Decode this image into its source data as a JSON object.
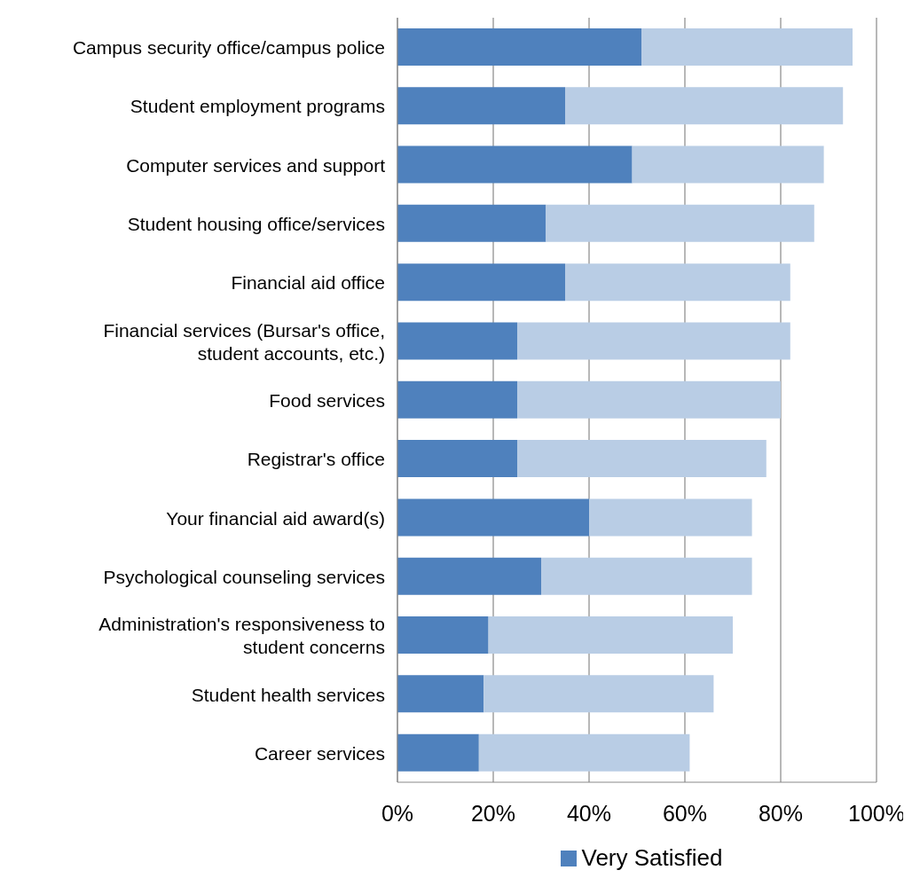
{
  "chart_data": {
    "type": "bar",
    "orientation": "horizontal",
    "stacked": true,
    "categories": [
      "Campus security office/campus police",
      "Student employment programs",
      "Computer services and support",
      "Student housing office/services",
      "Financial aid office",
      "Financial services (Bursar's office, student accounts, etc.)",
      "Food services",
      "Registrar's office",
      "Your financial aid award(s)",
      "Psychological counseling services",
      "Administration's responsiveness to student concerns",
      "Student health services",
      "Career services"
    ],
    "series": [
      {
        "name": "Very Satisfied",
        "color": "#4f81bd",
        "values": [
          51,
          35,
          49,
          31,
          35,
          25,
          25,
          25,
          40,
          30,
          19,
          18,
          17
        ]
      },
      {
        "color": "#b9cde5",
        "values": [
          44,
          58,
          40,
          56,
          47,
          57,
          55,
          52,
          34,
          44,
          51,
          48,
          44
        ]
      }
    ],
    "xlim": [
      0,
      100
    ],
    "xticks": [
      {
        "value": 0,
        "label": "0%"
      },
      {
        "value": 20,
        "label": "20%"
      },
      {
        "value": 40,
        "label": "40%"
      },
      {
        "value": 60,
        "label": "60%"
      },
      {
        "value": 80,
        "label": "80%"
      },
      {
        "value": 100,
        "label": "100%"
      }
    ],
    "grid": "x",
    "legend": "bottom"
  }
}
